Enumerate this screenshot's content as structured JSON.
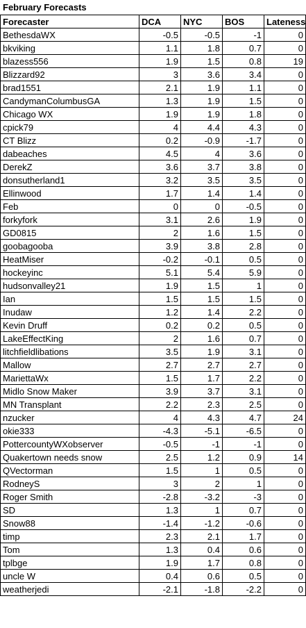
{
  "title": "February Forecasts",
  "headers": [
    "Forecaster",
    "DCA",
    "NYC",
    "BOS",
    "Lateness"
  ],
  "rows": [
    [
      "BethesdaWX",
      "-0.5",
      "-0.5",
      "-1",
      "0"
    ],
    [
      "bkviking",
      "1.1",
      "1.8",
      "0.7",
      "0"
    ],
    [
      "blazess556",
      "1.9",
      "1.5",
      "0.8",
      "19"
    ],
    [
      "Blizzard92",
      "3",
      "3.6",
      "3.4",
      "0"
    ],
    [
      "brad1551",
      "2.1",
      "1.9",
      "1.1",
      "0"
    ],
    [
      "CandymanColumbusGA",
      "1.3",
      "1.9",
      "1.5",
      "0"
    ],
    [
      "Chicago WX",
      "1.9",
      "1.9",
      "1.8",
      "0"
    ],
    [
      "cpick79",
      "4",
      "4.4",
      "4.3",
      "0"
    ],
    [
      "CT Blizz",
      "0.2",
      "-0.9",
      "-1.7",
      "0"
    ],
    [
      "dabeaches",
      "4.5",
      "4",
      "3.6",
      "0"
    ],
    [
      "DerekZ",
      "3.6",
      "3.7",
      "3.8",
      "0"
    ],
    [
      "donsutherland1",
      "3.2",
      "3.5",
      "3.5",
      "0"
    ],
    [
      "Ellinwood",
      "1.7",
      "1.4",
      "1.4",
      "0"
    ],
    [
      "Feb",
      "0",
      "0",
      "-0.5",
      "0"
    ],
    [
      "forkyfork",
      "3.1",
      "2.6",
      "1.9",
      "0"
    ],
    [
      "GD0815",
      "2",
      "1.6",
      "1.5",
      "0"
    ],
    [
      "goobagooba",
      "3.9",
      "3.8",
      "2.8",
      "0"
    ],
    [
      "HeatMiser",
      "-0.2",
      "-0.1",
      "0.5",
      "0"
    ],
    [
      "hockeyinc",
      "5.1",
      "5.4",
      "5.9",
      "0"
    ],
    [
      "hudsonvalley21",
      "1.9",
      "1.5",
      "1",
      "0"
    ],
    [
      "Ian",
      "1.5",
      "1.5",
      "1.5",
      "0"
    ],
    [
      "Inudaw",
      "1.2",
      "1.4",
      "2.2",
      "0"
    ],
    [
      "Kevin Druff",
      "0.2",
      "0.2",
      "0.5",
      "0"
    ],
    [
      "LakeEffectKing",
      "2",
      "1.6",
      "0.7",
      "0"
    ],
    [
      "litchfieldlibations",
      "3.5",
      "1.9",
      "3.1",
      "0"
    ],
    [
      "Mallow",
      "2.7",
      "2.7",
      "2.7",
      "0"
    ],
    [
      "MariettaWx",
      "1.5",
      "1.7",
      "2.2",
      "0"
    ],
    [
      "Midlo Snow Maker",
      "3.9",
      "3.7",
      "3.1",
      "0"
    ],
    [
      "MN Transplant",
      "2.2",
      "2.3",
      "2.5",
      "0"
    ],
    [
      "nzucker",
      "4",
      "4.3",
      "4.7",
      "24"
    ],
    [
      "okie333",
      "-4.3",
      "-5.1",
      "-6.5",
      "0"
    ],
    [
      "PottercountyWXobserver",
      "-0.5",
      "-1",
      "-1",
      "0"
    ],
    [
      "Quakertown needs snow",
      "2.5",
      "1.2",
      "0.9",
      "14"
    ],
    [
      "QVectorman",
      "1.5",
      "1",
      "0.5",
      "0"
    ],
    [
      "RodneyS",
      "3",
      "2",
      "1",
      "0"
    ],
    [
      "Roger Smith",
      "-2.8",
      "-3.2",
      "-3",
      "0"
    ],
    [
      "SD",
      "1.3",
      "1",
      "0.7",
      "0"
    ],
    [
      "Snow88",
      "-1.4",
      "-1.2",
      "-0.6",
      "0"
    ],
    [
      "timp",
      "2.3",
      "2.1",
      "1.7",
      "0"
    ],
    [
      "Tom",
      "1.3",
      "0.4",
      "0.6",
      "0"
    ],
    [
      "tplbge",
      "1.9",
      "1.7",
      "0.8",
      "0"
    ],
    [
      "uncle W",
      "0.4",
      "0.6",
      "0.5",
      "0"
    ],
    [
      "weatherjedi",
      "-2.1",
      "-1.8",
      "-2.2",
      "0"
    ]
  ]
}
